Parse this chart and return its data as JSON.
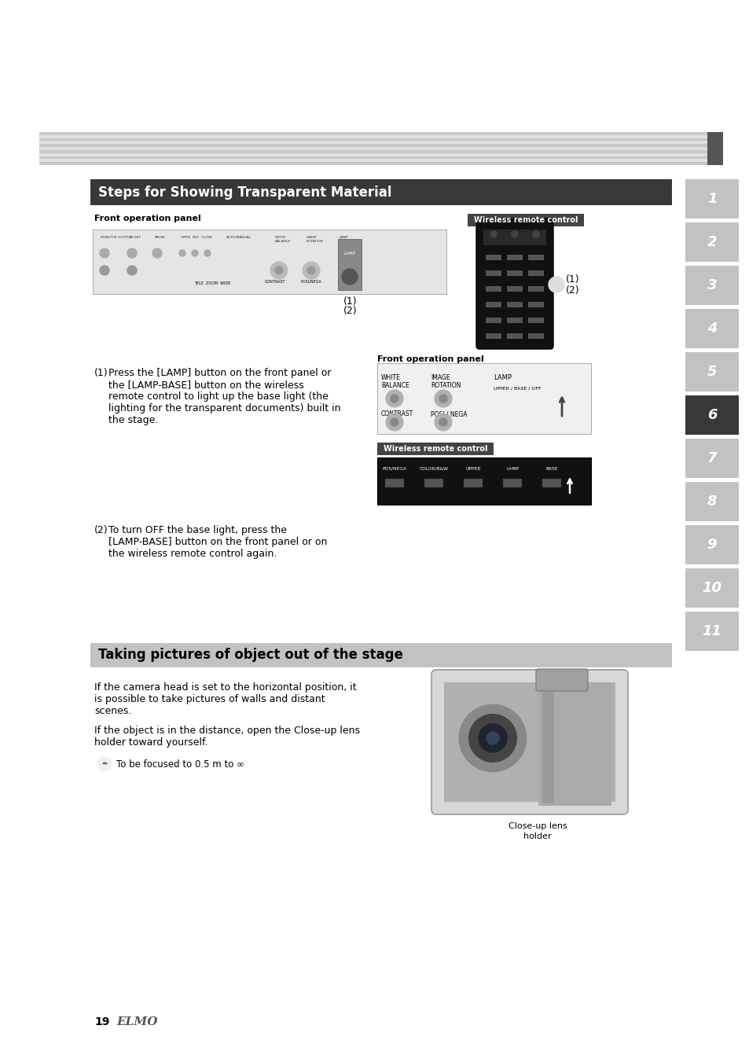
{
  "bg_color": "#ffffff",
  "page_width": 9.54,
  "page_height": 13.51,
  "tab_color_inactive": "#c2c2c2",
  "tab_color_active": "#383838",
  "tabs": [
    "1",
    "2",
    "3",
    "4",
    "5",
    "6",
    "7",
    "8",
    "9",
    "10",
    "11"
  ],
  "active_tab_idx": 5,
  "section1_title": "Steps for Showing Transparent Material",
  "section1_title_bg": "#383838",
  "section1_title_color": "#ffffff",
  "section2_title": "Taking pictures of object out of the stage",
  "section2_title_bg": "#c2c2c2",
  "section2_title_color": "#000000",
  "label_front_panel": "Front operation panel",
  "label_wireless": "Wireless remote control",
  "step1_lines": [
    "Press the [LAMP] button on the front panel or",
    "the [LAMP-BASE] button on the wireless",
    "remote control to light up the base light (the",
    "lighting for the transparent documents) built in",
    "the stage."
  ],
  "step2_lines": [
    "To turn OFF the base light, press the",
    "[LAMP-BASE] button on the front panel or on",
    "the wireless remote control again."
  ],
  "sec2_text1_lines": [
    "If the camera head is set to the horizontal position, it",
    "is possible to take pictures of walls and distant",
    "scenes."
  ],
  "sec2_text2_lines": [
    "If the object is in the distance, open the Close-up lens",
    "holder toward yourself."
  ],
  "note_text": "To be focused to 0.5 m to ∞",
  "closeup_label": "Close-up lens\nholder",
  "page_number": "19",
  "brand": "ELMO",
  "stripe_colors": [
    "#c8c8c8",
    "#c0c0c0",
    "#b8b8b8",
    "#b4b4b4",
    "#b8b8b8",
    "#bcbcbc",
    "#c0c0c0",
    "#c4c4c4",
    "#c8c8c8",
    "#cccccc",
    "#d0d0d0"
  ],
  "stripe_gap_colors": [
    "#e8e8e8",
    "#e0e0e0",
    "#d8d8d8",
    "#d4d4d4",
    "#d8d8d8",
    "#dcdcdc",
    "#e0e0e0",
    "#e4e4e4",
    "#e8e8e8",
    "#ececec",
    "#f0f0f0"
  ]
}
